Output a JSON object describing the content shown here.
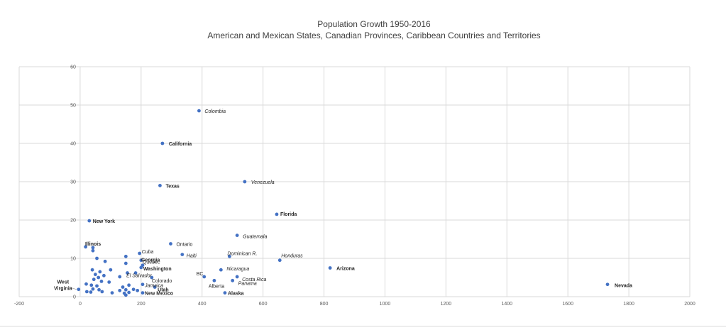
{
  "chart_data": {
    "type": "scatter",
    "title": "Population Growth 1950-2016",
    "subtitle": "American and Mexican States, Canadian Provinces, Caribbean Countries and Territories",
    "xlim": [
      -200,
      2000
    ],
    "ylim": [
      0,
      60
    ],
    "x_ticks": [
      "-200",
      "0",
      "200",
      "400",
      "600",
      "800",
      "1000",
      "1200",
      "1400",
      "1600",
      "1800",
      "2000"
    ],
    "y_ticks": [
      "0",
      "10",
      "20",
      "30",
      "40",
      "50",
      "60"
    ],
    "grid": true,
    "point_color": "#4472C4",
    "points": [
      {
        "x": 390,
        "y": 48.5,
        "label": "Colombia",
        "style": "italic"
      },
      {
        "x": 270,
        "y": 40,
        "label": "California",
        "style": "bold"
      },
      {
        "x": 540,
        "y": 30,
        "label": "Venezuela",
        "style": "italic"
      },
      {
        "x": 262,
        "y": 29,
        "label": "Texas",
        "style": "bold"
      },
      {
        "x": 645,
        "y": 21.5,
        "label": "Florida",
        "style": "bold"
      },
      {
        "x": 30,
        "y": 19.8,
        "label": "New York",
        "style": "bold"
      },
      {
        "x": 515,
        "y": 16,
        "label": "Guatemala",
        "style": "italic"
      },
      {
        "x": 297,
        "y": 13.8,
        "label": "Ontario",
        "style": "normal"
      },
      {
        "x": 42,
        "y": 12.8,
        "label": "Illinois",
        "style": "bold"
      },
      {
        "x": 195,
        "y": 11.3,
        "label": "Cuba",
        "style": "italic"
      },
      {
        "x": 335,
        "y": 11,
        "label": "Haiti",
        "style": "italic"
      },
      {
        "x": 490,
        "y": 10.5,
        "label": "Dominican R.",
        "style": "italic"
      },
      {
        "x": 655,
        "y": 9.5,
        "label": "Honduras",
        "style": "italic"
      },
      {
        "x": 200,
        "y": 9.5,
        "label": "Georgia",
        "style": "bold"
      },
      {
        "x": 205,
        "y": 8.2,
        "label": "Quebec",
        "style": "normal"
      },
      {
        "x": 200,
        "y": 7.6,
        "label": "Washington",
        "style": "bold"
      },
      {
        "x": 820,
        "y": 7.5,
        "label": "Arizona",
        "style": "bold"
      },
      {
        "x": 462,
        "y": 7,
        "label": "Nicaragua",
        "style": "italic"
      },
      {
        "x": 182,
        "y": 6.2,
        "label": "El Salvador",
        "style": "italic"
      },
      {
        "x": 407,
        "y": 5.2,
        "label": "BC",
        "style": "normal"
      },
      {
        "x": 235,
        "y": 5,
        "label": "Colorado",
        "style": "normal"
      },
      {
        "x": 515,
        "y": 5.2,
        "label": "Costa Rica",
        "style": "italic"
      },
      {
        "x": 500,
        "y": 4.2,
        "label": "Panama",
        "style": "italic"
      },
      {
        "x": 440,
        "y": 4.2,
        "label": "Alberta",
        "style": "normal"
      },
      {
        "x": 1730,
        "y": 3.2,
        "label": "Nevada",
        "style": "bold"
      },
      {
        "x": 205,
        "y": 3.2,
        "label": "Jamaica",
        "style": "italic"
      },
      {
        "x": 245,
        "y": 2.5,
        "label": "Utah",
        "style": "bold"
      },
      {
        "x": -5,
        "y": 1.9,
        "label": "West Virginia",
        "style": "bold"
      },
      {
        "x": 205,
        "y": 1.0,
        "label": "New Mexico",
        "style": "bold"
      },
      {
        "x": 475,
        "y": 1.0,
        "label": "Alaska",
        "style": "bold"
      },
      {
        "x": 18,
        "y": 13,
        "label": ""
      },
      {
        "x": 42,
        "y": 12,
        "label": ""
      },
      {
        "x": 55,
        "y": 10,
        "label": ""
      },
      {
        "x": 150,
        "y": 10.5,
        "label": ""
      },
      {
        "x": 82,
        "y": 9.2,
        "label": ""
      },
      {
        "x": 150,
        "y": 8.7,
        "label": ""
      },
      {
        "x": 100,
        "y": 7,
        "label": ""
      },
      {
        "x": 40,
        "y": 7,
        "label": ""
      },
      {
        "x": 65,
        "y": 6.5,
        "label": ""
      },
      {
        "x": 155,
        "y": 6.2,
        "label": ""
      },
      {
        "x": 50,
        "y": 5.8,
        "label": ""
      },
      {
        "x": 78,
        "y": 5.5,
        "label": ""
      },
      {
        "x": 130,
        "y": 5.2,
        "label": ""
      },
      {
        "x": 60,
        "y": 5,
        "label": ""
      },
      {
        "x": 45,
        "y": 4.5,
        "label": ""
      },
      {
        "x": 70,
        "y": 4,
        "label": ""
      },
      {
        "x": 95,
        "y": 3.8,
        "label": ""
      },
      {
        "x": 20,
        "y": 3.3,
        "label": ""
      },
      {
        "x": 37,
        "y": 3,
        "label": ""
      },
      {
        "x": 55,
        "y": 2.8,
        "label": ""
      },
      {
        "x": 160,
        "y": 3,
        "label": ""
      },
      {
        "x": 140,
        "y": 2.5,
        "label": ""
      },
      {
        "x": 42,
        "y": 2,
        "label": ""
      },
      {
        "x": 62,
        "y": 1.8,
        "label": ""
      },
      {
        "x": 130,
        "y": 1.6,
        "label": ""
      },
      {
        "x": 150,
        "y": 1.8,
        "label": ""
      },
      {
        "x": 175,
        "y": 1.9,
        "label": ""
      },
      {
        "x": 188,
        "y": 1.6,
        "label": ""
      },
      {
        "x": 22,
        "y": 1.3,
        "label": ""
      },
      {
        "x": 35,
        "y": 1.2,
        "label": ""
      },
      {
        "x": 72,
        "y": 1.3,
        "label": ""
      },
      {
        "x": 105,
        "y": 1.0,
        "label": ""
      },
      {
        "x": 145,
        "y": 0.9,
        "label": ""
      },
      {
        "x": 160,
        "y": 1.1,
        "label": ""
      },
      {
        "x": 150,
        "y": 0.4,
        "label": ""
      }
    ]
  }
}
